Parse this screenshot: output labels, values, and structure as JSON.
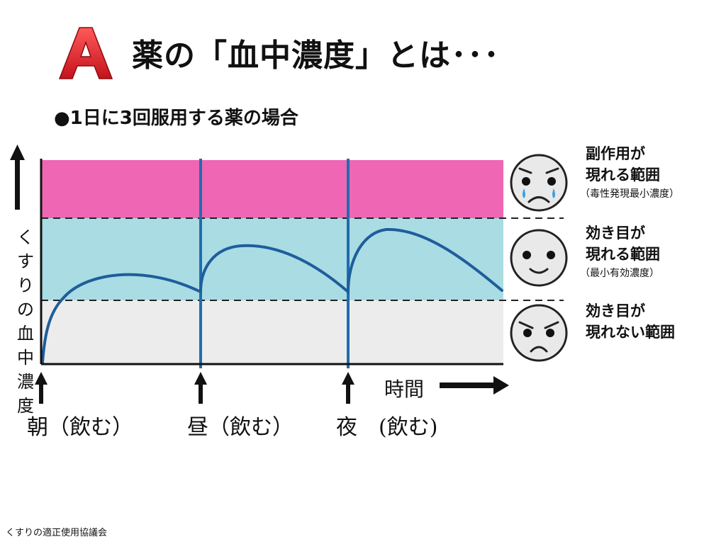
{
  "header": {
    "logo_letter": "A",
    "title": "薬の「血中濃度」とは･･･"
  },
  "subtitle": "●1日に3回服用する薬の場合",
  "chart": {
    "y_axis_label": "くすりの血中濃度",
    "x_axis_label": "時間",
    "zones": [
      {
        "key": "side_effect",
        "lines": [
          "副作用が",
          "現れる範囲"
        ],
        "note": "（毒性発現最小濃度）",
        "color": "#ee66b4",
        "face": "crying"
      },
      {
        "key": "effective",
        "lines": [
          "効き目が",
          "現れる範囲"
        ],
        "note": "（最小有効濃度）",
        "color": "#a9dce3",
        "face": "smiling"
      },
      {
        "key": "ineffective",
        "lines": [
          "効き目が",
          "現れない範囲"
        ],
        "note": "",
        "color": "#ececec",
        "face": "angry"
      }
    ],
    "doses": [
      "朝（飲む）",
      "昼（飲む）",
      "夜　(飲む)"
    ],
    "colors": {
      "curve": "#1f5d9b",
      "dose_line": "#1f6db0",
      "axis": "#111111",
      "logo_red": "#e8202a"
    }
  },
  "footer": "くすりの適正使用協議会"
}
